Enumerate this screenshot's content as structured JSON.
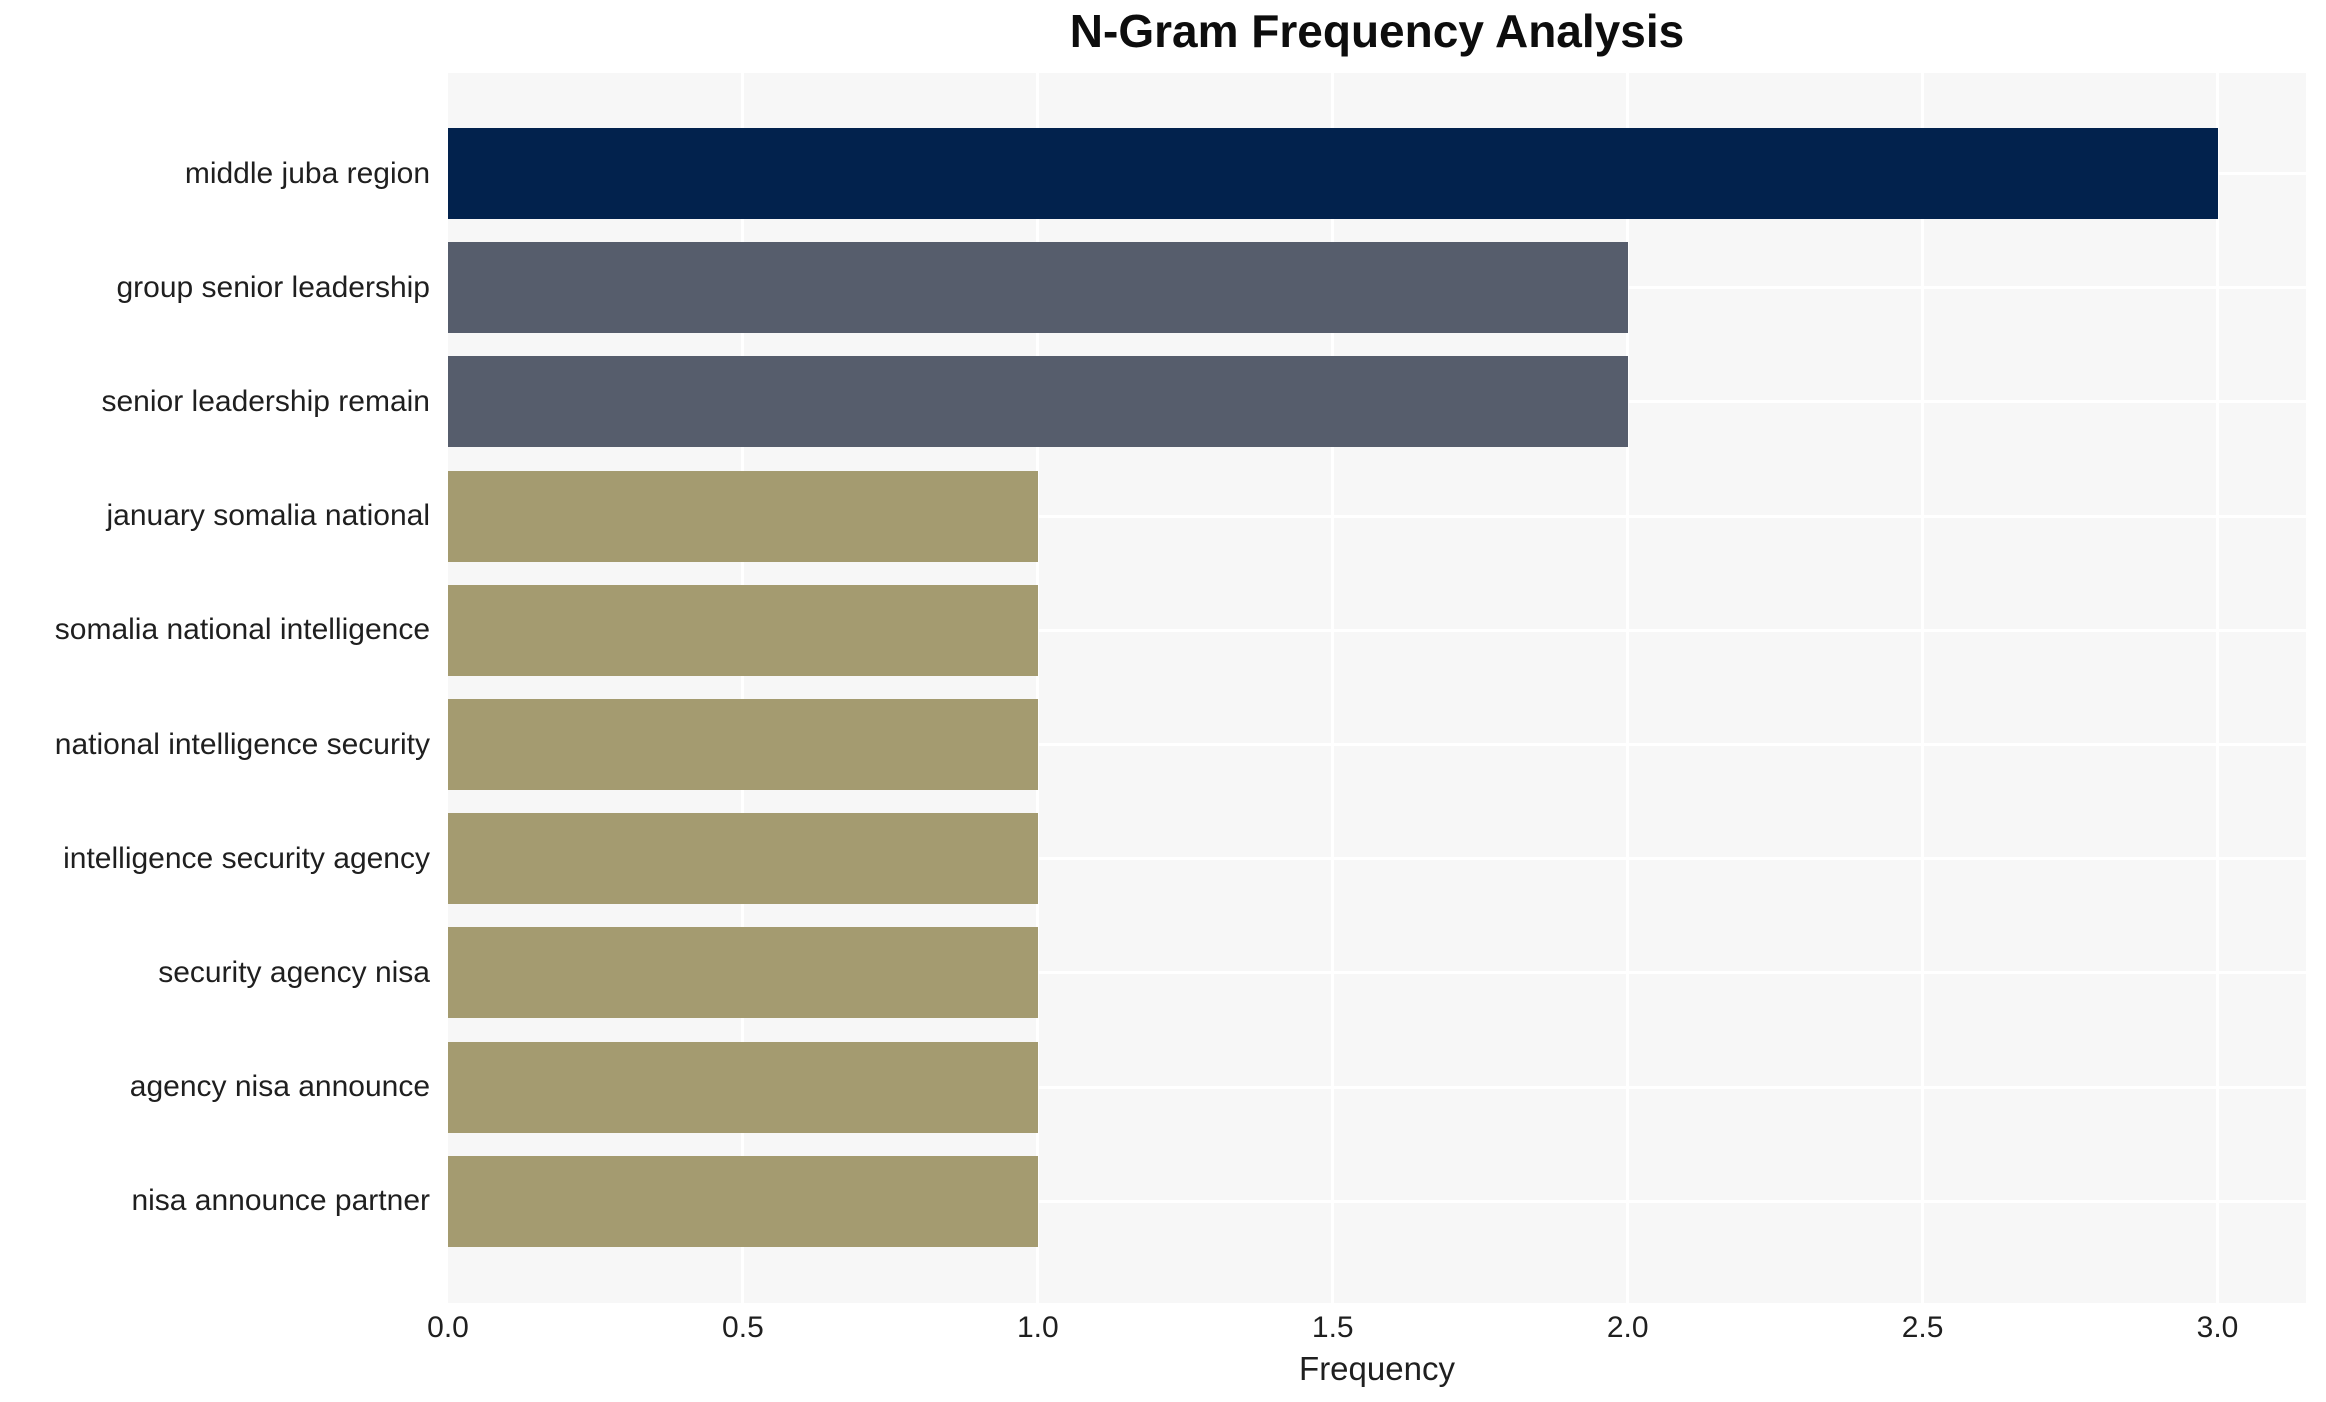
{
  "title": "N-Gram Frequency Analysis",
  "colors": {
    "plot_background": "#F7F7F7",
    "gridline": "#FFFFFF",
    "text": "#1F1F1F",
    "navy": "#02224D",
    "slate": "#565D6C",
    "khaki": "#A49B70"
  },
  "chart_data": {
    "type": "bar",
    "orientation": "horizontal",
    "title": "N-Gram Frequency Analysis",
    "xlabel": "Frequency",
    "ylabel": "",
    "xlim": [
      0,
      3.15
    ],
    "xticks": [
      0,
      0.5,
      1,
      1.5,
      2,
      2.5,
      3
    ],
    "xtick_labels": [
      "0.0",
      "0.5",
      "1.0",
      "1.5",
      "2.0",
      "2.5",
      "3.0"
    ],
    "grid": true,
    "legend": false,
    "categories": [
      "middle juba region",
      "group senior leadership",
      "senior leadership remain",
      "january somalia national",
      "somalia national intelligence",
      "national intelligence security",
      "intelligence security agency",
      "security agency nisa",
      "agency nisa announce",
      "nisa announce partner"
    ],
    "values": [
      3,
      2,
      2,
      1,
      1,
      1,
      1,
      1,
      1,
      1
    ],
    "bar_colors": [
      "#02224D",
      "#565D6C",
      "#565D6C",
      "#A49B70",
      "#A49B70",
      "#A49B70",
      "#A49B70",
      "#A49B70",
      "#A49B70",
      "#A49B70"
    ]
  }
}
